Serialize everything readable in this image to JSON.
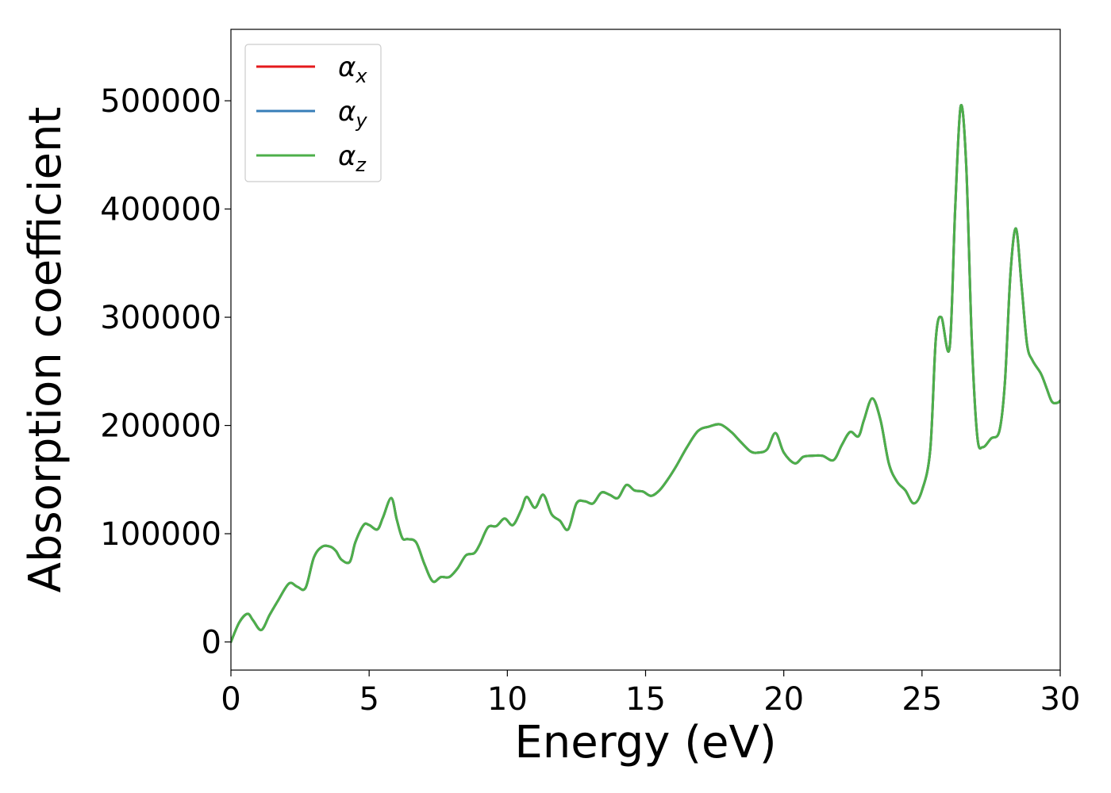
{
  "chart_data": {
    "type": "line",
    "title": "",
    "xlabel": "Energy (eV)",
    "ylabel": "Absorption coefficient",
    "xlim": [
      0,
      30
    ],
    "ylim": [
      -26000,
      566000
    ],
    "x_ticks": [
      0,
      5,
      10,
      15,
      20,
      25,
      30
    ],
    "y_ticks": [
      0,
      100000,
      200000,
      300000,
      400000,
      500000
    ],
    "grid": false,
    "legend_position": "top-left",
    "series": [
      {
        "name": "α",
        "subscript": "x",
        "color": "#e41a1c"
      },
      {
        "name": "α",
        "subscript": "y",
        "color": "#377eb8"
      },
      {
        "name": "α",
        "subscript": "z",
        "color": "#4daf4a"
      }
    ],
    "x": [
      0,
      0.3,
      0.6,
      0.8,
      1.1,
      1.4,
      1.7,
      2.1,
      2.4,
      2.7,
      3.0,
      3.3,
      3.6,
      3.8,
      4.0,
      4.3,
      4.5,
      4.8,
      5.0,
      5.3,
      5.5,
      5.8,
      6.0,
      6.2,
      6.4,
      6.7,
      7.0,
      7.3,
      7.6,
      7.9,
      8.2,
      8.5,
      8.8,
      9.0,
      9.3,
      9.6,
      9.9,
      10.2,
      10.5,
      10.7,
      11.0,
      11.3,
      11.6,
      11.9,
      12.2,
      12.5,
      12.8,
      13.1,
      13.4,
      13.7,
      14.0,
      14.3,
      14.6,
      14.9,
      15.2,
      15.5,
      15.8,
      16.1,
      16.5,
      16.9,
      17.3,
      17.7,
      18.1,
      18.4,
      18.8,
      19.1,
      19.4,
      19.7,
      20.0,
      20.4,
      20.7,
      21.0,
      21.4,
      21.8,
      22.1,
      22.4,
      22.7,
      22.9,
      23.2,
      23.5,
      23.8,
      24.1,
      24.4,
      24.7,
      25.0,
      25.3,
      25.5,
      25.7,
      26.0,
      26.2,
      26.4,
      26.6,
      26.8,
      27.0,
      27.2,
      27.5,
      27.8,
      28.0,
      28.2,
      28.4,
      28.6,
      28.8,
      29.0,
      29.3,
      29.5,
      29.7,
      29.9,
      30.0
    ],
    "values": [
      0,
      18000,
      26000,
      20000,
      11000,
      25000,
      38000,
      54000,
      51000,
      50000,
      78000,
      88000,
      88000,
      84000,
      76000,
      74000,
      92000,
      108000,
      108000,
      104000,
      115000,
      133000,
      113000,
      96000,
      95000,
      92000,
      72000,
      56000,
      60000,
      60000,
      68000,
      80000,
      82000,
      90000,
      106000,
      107000,
      114000,
      108000,
      122000,
      134000,
      124000,
      136000,
      118000,
      112000,
      104000,
      128000,
      130000,
      128000,
      138000,
      136000,
      133000,
      145000,
      140000,
      139000,
      135000,
      140000,
      150000,
      162000,
      180000,
      195000,
      199000,
      201000,
      194000,
      186000,
      176000,
      175000,
      178000,
      193000,
      175000,
      165000,
      171000,
      172000,
      172000,
      168000,
      182000,
      194000,
      190000,
      205000,
      225000,
      205000,
      165000,
      148000,
      140000,
      128000,
      140000,
      178000,
      280000,
      300000,
      272000,
      400000,
      495000,
      440000,
      280000,
      190000,
      180000,
      188000,
      195000,
      240000,
      340000,
      382000,
      330000,
      275000,
      260000,
      248000,
      235000,
      222000,
      221000,
      223000
    ]
  }
}
